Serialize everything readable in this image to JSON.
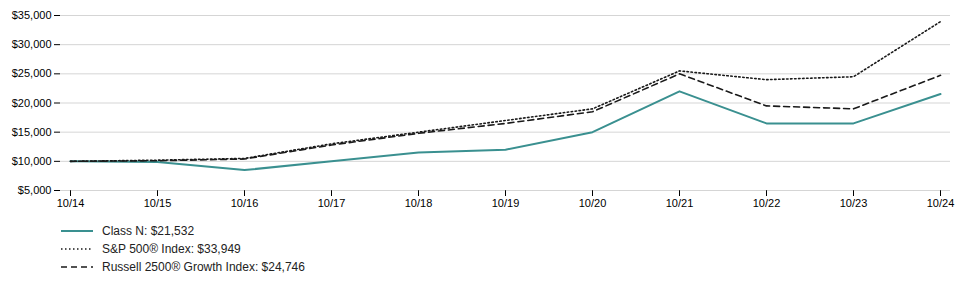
{
  "chart_data": {
    "type": "line",
    "categories": [
      "10/14",
      "10/15",
      "10/16",
      "10/17",
      "10/18",
      "10/19",
      "10/20",
      "10/21",
      "10/22",
      "10/23",
      "10/24"
    ],
    "series": [
      {
        "name": "Class N: $21,532",
        "color": "#3a9090",
        "line_style": "solid",
        "values": [
          10000,
          9900,
          8500,
          10000,
          11500,
          12000,
          15000,
          22000,
          16500,
          16500,
          21532
        ]
      },
      {
        "name": "S&P 500® Index: $33,949",
        "color": "#1a1a1a",
        "line_style": "dotted",
        "values": [
          10000,
          10200,
          10500,
          13000,
          15000,
          17000,
          19000,
          25500,
          24000,
          24500,
          33949
        ]
      },
      {
        "name": "Russell 2500® Growth Index: $24,746",
        "color": "#1a1a1a",
        "line_style": "dashed",
        "values": [
          10000,
          10100,
          10400,
          12800,
          14800,
          16500,
          18500,
          25000,
          19500,
          19000,
          24746
        ]
      }
    ],
    "ylim": [
      5000,
      35000
    ],
    "yticks": [
      {
        "value": 5000,
        "label": "$5,000"
      },
      {
        "value": 10000,
        "label": "$10,000"
      },
      {
        "value": 15000,
        "label": "$15,000"
      },
      {
        "value": 20000,
        "label": "$20,000"
      },
      {
        "value": 25000,
        "label": "$25,000"
      },
      {
        "value": 30000,
        "label": "$30,000"
      },
      {
        "value": 35000,
        "label": "$35,000"
      }
    ],
    "grid": true,
    "legend": "lower left"
  }
}
